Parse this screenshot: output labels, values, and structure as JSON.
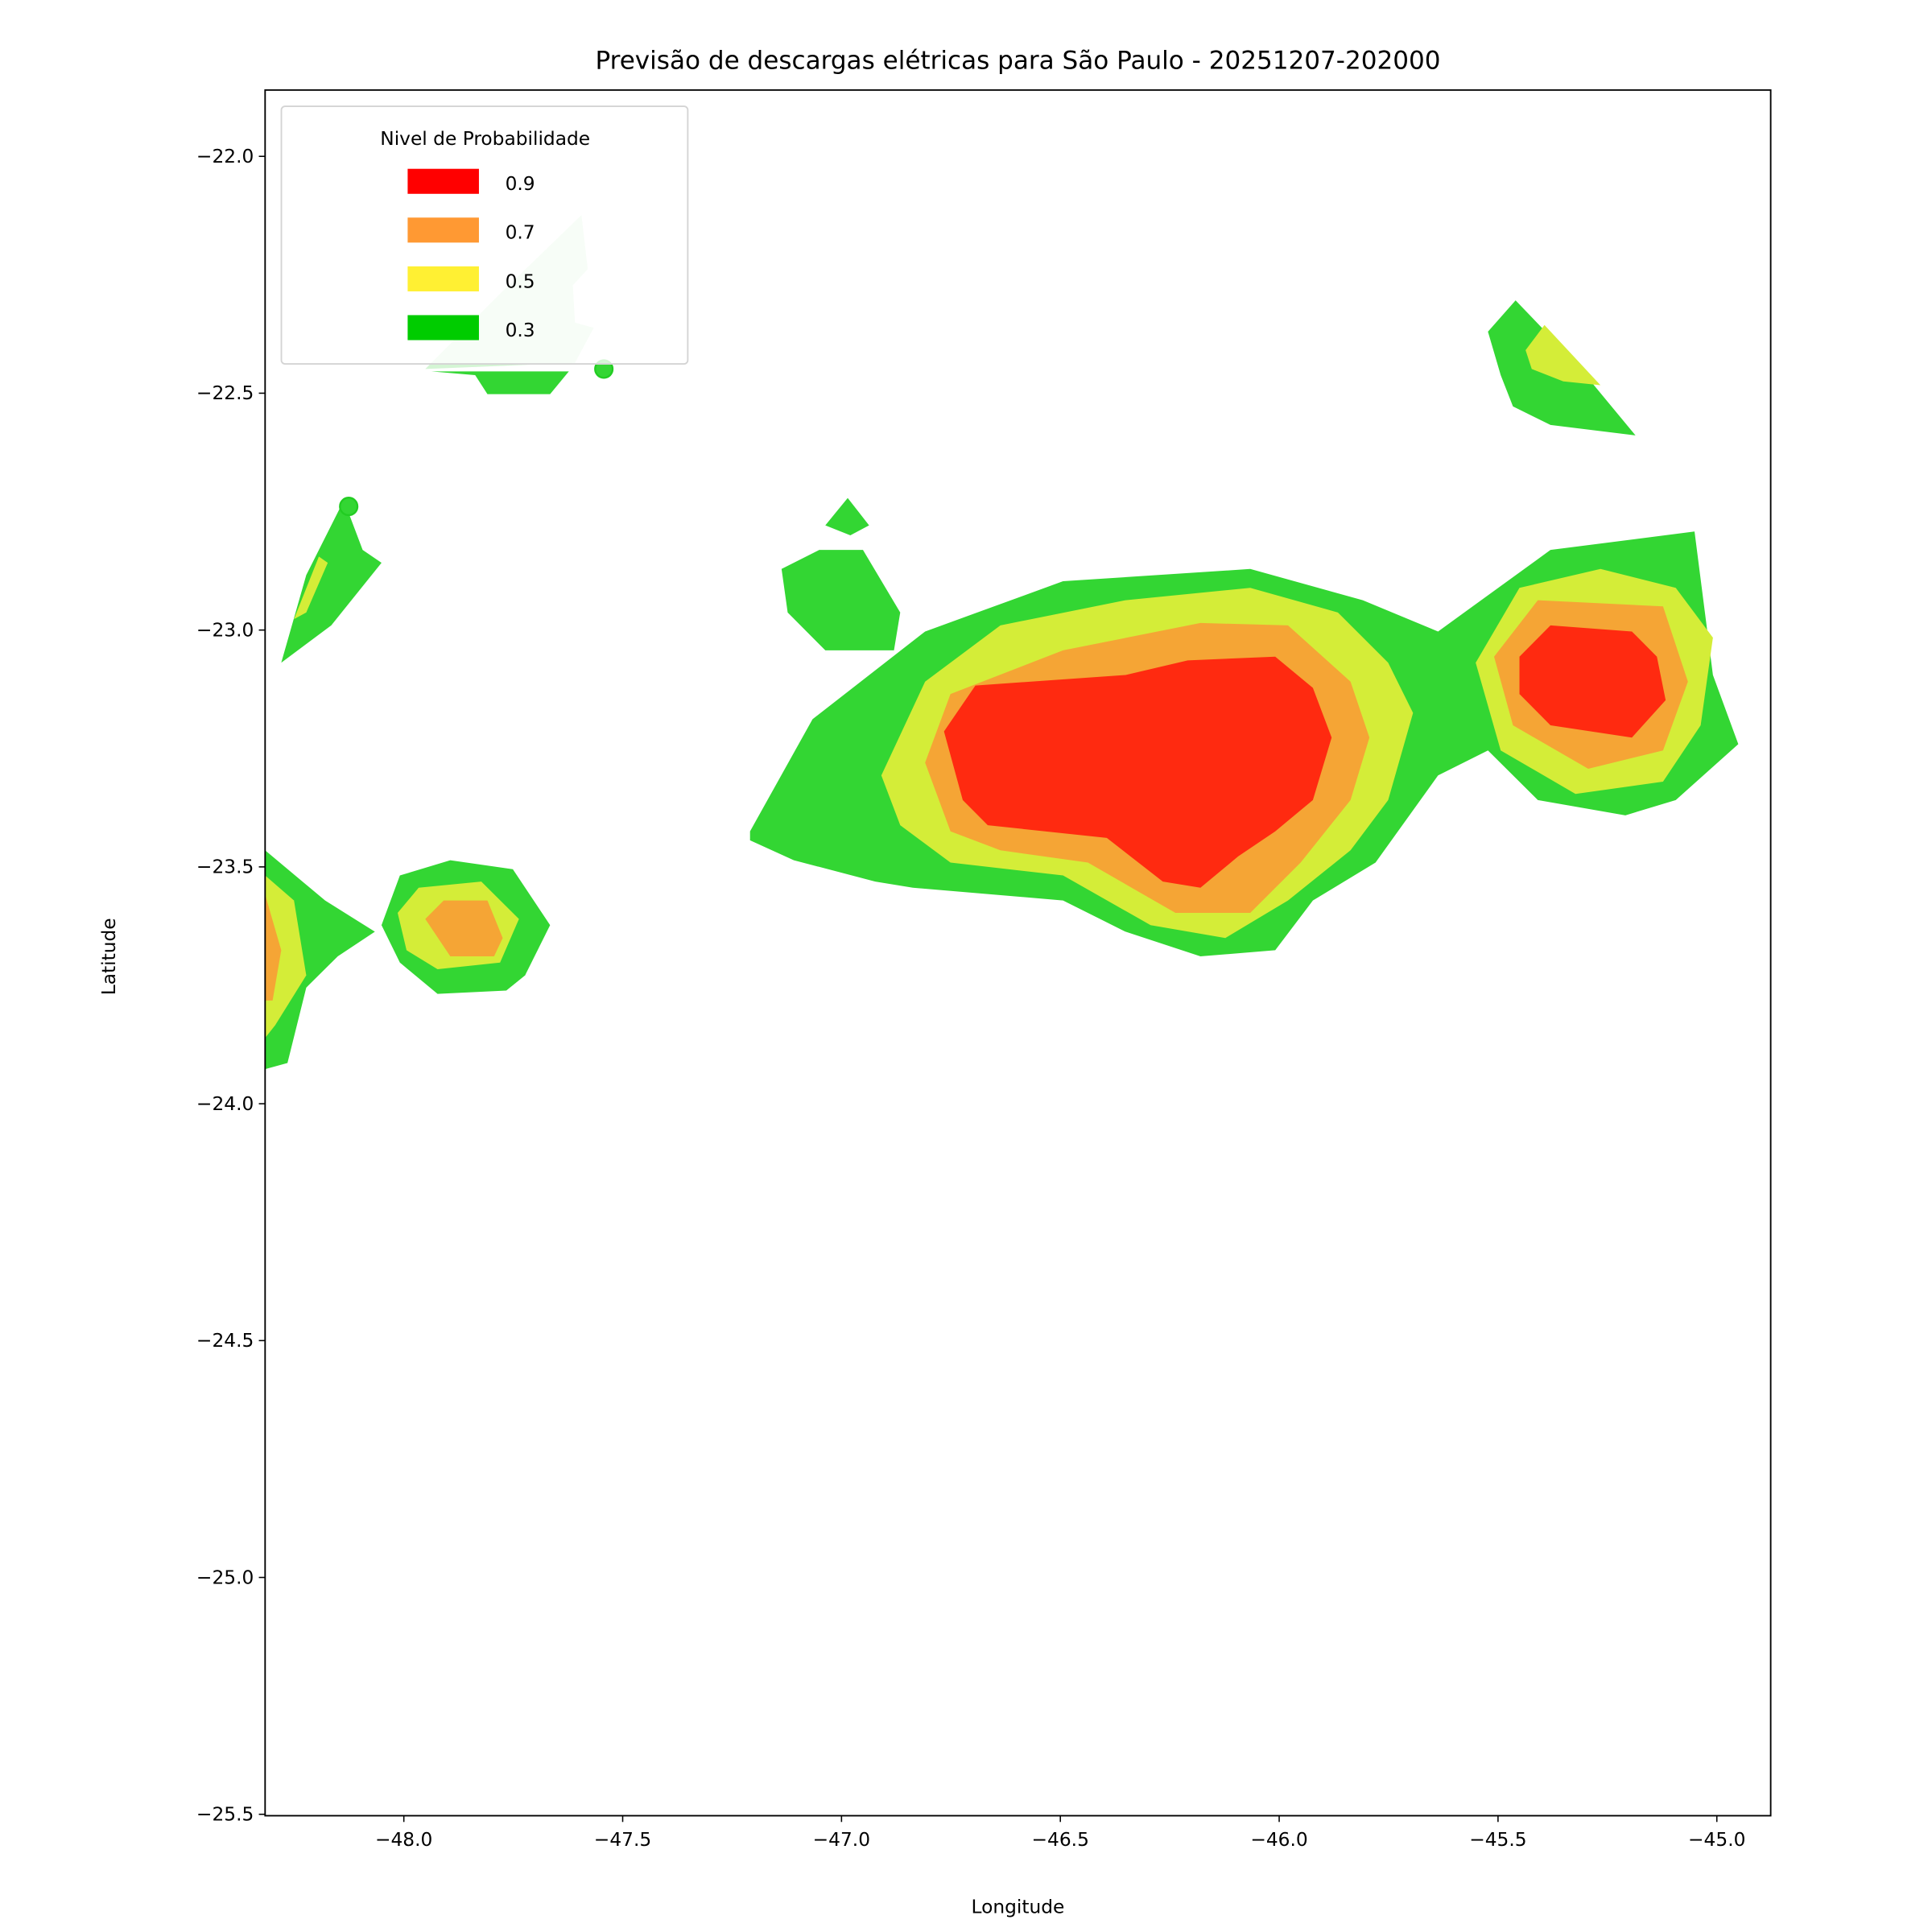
{
  "chart_data": {
    "type": "contour",
    "title": "Previsão de descargas elétricas para São Paulo - 20251207-202000",
    "xlabel": "Longitude",
    "ylabel": "Latitude",
    "xlim": [
      -48.317,
      -44.877
    ],
    "ylim": [
      -25.503,
      -21.86
    ],
    "xticks": [
      -48.0,
      -47.5,
      -47.0,
      -46.5,
      -46.0,
      -45.5,
      -45.0
    ],
    "yticks": [
      -22.0,
      -22.5,
      -23.0,
      -23.5,
      -24.0,
      -24.5,
      -25.0,
      -25.5
    ],
    "grid": false,
    "legend": {
      "title": "Nivel de Probabilidade",
      "placement": "top-left",
      "entries": [
        {
          "label": "0.9",
          "color": "#ff0000"
        },
        {
          "label": "0.7",
          "color": "#ff9933"
        },
        {
          "label": "0.5",
          "color": "#fff033"
        },
        {
          "label": "0.3",
          "color": "#00cc00"
        }
      ]
    },
    "fill_colors": {
      "low": "#d4f5d4",
      "0.3": "#33d633",
      "0.5": "#d4ed38",
      "0.7": "#f5a535",
      "0.9": "#ff2a10"
    },
    "regions": [
      {
        "level": "low",
        "points": [
          [
            -47.951,
            -22.449
          ],
          [
            -47.78,
            -22.29
          ],
          [
            -47.594,
            -22.124
          ],
          [
            -47.58,
            -22.238
          ],
          [
            -47.614,
            -22.272
          ],
          [
            -47.609,
            -22.351
          ],
          [
            -47.566,
            -22.362
          ],
          [
            -47.609,
            -22.436
          ]
        ]
      },
      {
        "level": "0.3",
        "points": [
          [
            -47.937,
            -22.454
          ],
          [
            -47.623,
            -22.454
          ],
          [
            -47.666,
            -22.502
          ],
          [
            -47.809,
            -22.502
          ],
          [
            -47.837,
            -22.462
          ]
        ]
      },
      {
        "level": "0.3",
        "points": [
          [
            -47.209,
            -23.425
          ],
          [
            -47.066,
            -23.188
          ],
          [
            -46.809,
            -23.003
          ],
          [
            -46.494,
            -22.897
          ],
          [
            -46.066,
            -22.871
          ],
          [
            -45.809,
            -22.937
          ],
          [
            -45.637,
            -23.003
          ],
          [
            -45.38,
            -22.831
          ],
          [
            -45.051,
            -22.792
          ],
          [
            -45.009,
            -23.095
          ],
          [
            -44.951,
            -23.241
          ],
          [
            -45.094,
            -23.359
          ],
          [
            -45.209,
            -23.391
          ],
          [
            -45.409,
            -23.359
          ],
          [
            -45.523,
            -23.254
          ],
          [
            -45.637,
            -23.307
          ],
          [
            -45.78,
            -23.491
          ],
          [
            -45.923,
            -23.571
          ],
          [
            -46.009,
            -23.676
          ],
          [
            -46.18,
            -23.689
          ],
          [
            -46.351,
            -23.637
          ],
          [
            -46.494,
            -23.571
          ],
          [
            -46.837,
            -23.544
          ],
          [
            -46.923,
            -23.531
          ],
          [
            -47.109,
            -23.486
          ],
          [
            -47.209,
            -23.444
          ]
        ]
      },
      {
        "level": "0.3",
        "points": [
          [
            -47.137,
            -22.871
          ],
          [
            -47.051,
            -22.831
          ],
          [
            -46.951,
            -22.831
          ],
          [
            -46.866,
            -22.963
          ],
          [
            -46.88,
            -23.043
          ],
          [
            -47.037,
            -23.043
          ],
          [
            -47.123,
            -22.963
          ]
        ]
      },
      {
        "level": "0.3",
        "points": [
          [
            -47.037,
            -22.779
          ],
          [
            -46.986,
            -22.721
          ],
          [
            -46.937,
            -22.779
          ],
          [
            -46.98,
            -22.8
          ]
        ]
      },
      {
        "level": "0.3",
        "points": [
          [
            -45.523,
            -22.37
          ],
          [
            -45.46,
            -22.304
          ],
          [
            -45.323,
            -22.436
          ],
          [
            -45.186,
            -22.589
          ],
          [
            -45.38,
            -22.567
          ],
          [
            -45.466,
            -22.528
          ],
          [
            -45.494,
            -22.462
          ]
        ]
      },
      {
        "level": "0.3",
        "points": [
          [
            -48.051,
            -23.623
          ],
          [
            -48.009,
            -23.518
          ],
          [
            -47.894,
            -23.486
          ],
          [
            -47.751,
            -23.505
          ],
          [
            -47.666,
            -23.623
          ],
          [
            -47.723,
            -23.729
          ],
          [
            -47.766,
            -23.761
          ],
          [
            -47.923,
            -23.768
          ],
          [
            -48.009,
            -23.702
          ]
        ]
      },
      {
        "level": "0.3",
        "points": [
          [
            -48.317,
            -23.465
          ],
          [
            -48.18,
            -23.571
          ],
          [
            -48.066,
            -23.637
          ],
          [
            -48.151,
            -23.689
          ],
          [
            -48.223,
            -23.755
          ],
          [
            -48.266,
            -23.914
          ],
          [
            -48.317,
            -23.927
          ]
        ]
      },
      {
        "level": "0.3",
        "points": [
          [
            -48.28,
            -23.069
          ],
          [
            -48.223,
            -22.884
          ],
          [
            -48.137,
            -22.726
          ],
          [
            -48.094,
            -22.831
          ],
          [
            -48.051,
            -22.858
          ],
          [
            -48.166,
            -22.99
          ]
        ]
      },
      {
        "level": "0.5",
        "points": [
          [
            -46.909,
            -23.307
          ],
          [
            -46.809,
            -23.109
          ],
          [
            -46.637,
            -22.99
          ],
          [
            -46.351,
            -22.937
          ],
          [
            -46.066,
            -22.911
          ],
          [
            -45.866,
            -22.963
          ],
          [
            -45.751,
            -23.069
          ],
          [
            -45.694,
            -23.175
          ],
          [
            -45.751,
            -23.359
          ],
          [
            -45.837,
            -23.465
          ],
          [
            -45.98,
            -23.571
          ],
          [
            -46.123,
            -23.65
          ],
          [
            -46.294,
            -23.623
          ],
          [
            -46.494,
            -23.518
          ],
          [
            -46.751,
            -23.491
          ],
          [
            -46.866,
            -23.412
          ]
        ]
      },
      {
        "level": "0.5",
        "points": [
          [
            -45.551,
            -23.069
          ],
          [
            -45.451,
            -22.911
          ],
          [
            -45.266,
            -22.871
          ],
          [
            -45.094,
            -22.911
          ],
          [
            -45.009,
            -23.016
          ],
          [
            -45.037,
            -23.201
          ],
          [
            -45.123,
            -23.32
          ],
          [
            -45.323,
            -23.346
          ],
          [
            -45.494,
            -23.254
          ]
        ]
      },
      {
        "level": "0.5",
        "points": [
          [
            -45.437,
            -22.409
          ],
          [
            -45.394,
            -22.356
          ],
          [
            -45.266,
            -22.483
          ],
          [
            -45.351,
            -22.475
          ],
          [
            -45.423,
            -22.449
          ]
        ]
      },
      {
        "level": "0.5",
        "points": [
          [
            -48.014,
            -23.597
          ],
          [
            -47.966,
            -23.544
          ],
          [
            -47.823,
            -23.531
          ],
          [
            -47.737,
            -23.61
          ],
          [
            -47.78,
            -23.702
          ],
          [
            -47.923,
            -23.716
          ],
          [
            -47.994,
            -23.676
          ]
        ]
      },
      {
        "level": "0.5",
        "points": [
          [
            -48.317,
            -23.518
          ],
          [
            -48.251,
            -23.571
          ],
          [
            -48.223,
            -23.729
          ],
          [
            -48.294,
            -23.834
          ],
          [
            -48.317,
            -23.861
          ]
        ]
      },
      {
        "level": "0.5",
        "points": [
          [
            -48.251,
            -22.977
          ],
          [
            -48.194,
            -22.845
          ],
          [
            -48.174,
            -22.858
          ],
          [
            -48.223,
            -22.963
          ]
        ]
      },
      {
        "level": "0.7",
        "points": [
          [
            -46.809,
            -23.28
          ],
          [
            -46.751,
            -23.135
          ],
          [
            -46.494,
            -23.043
          ],
          [
            -46.18,
            -22.985
          ],
          [
            -45.98,
            -22.99
          ],
          [
            -45.837,
            -23.109
          ],
          [
            -45.794,
            -23.227
          ],
          [
            -45.837,
            -23.359
          ],
          [
            -45.951,
            -23.491
          ],
          [
            -46.066,
            -23.597
          ],
          [
            -46.237,
            -23.597
          ],
          [
            -46.437,
            -23.491
          ],
          [
            -46.637,
            -23.465
          ],
          [
            -46.751,
            -23.425
          ]
        ]
      },
      {
        "level": "0.7",
        "points": [
          [
            -45.509,
            -23.056
          ],
          [
            -45.409,
            -22.937
          ],
          [
            -45.123,
            -22.95
          ],
          [
            -45.066,
            -23.109
          ],
          [
            -45.123,
            -23.254
          ],
          [
            -45.294,
            -23.293
          ],
          [
            -45.466,
            -23.201
          ]
        ]
      },
      {
        "level": "0.7",
        "points": [
          [
            -47.951,
            -23.61
          ],
          [
            -47.909,
            -23.571
          ],
          [
            -47.809,
            -23.571
          ],
          [
            -47.774,
            -23.65
          ],
          [
            -47.794,
            -23.689
          ],
          [
            -47.894,
            -23.689
          ]
        ]
      },
      {
        "level": "0.7",
        "points": [
          [
            -48.317,
            -23.558
          ],
          [
            -48.28,
            -23.676
          ],
          [
            -48.3,
            -23.782
          ],
          [
            -48.317,
            -23.782
          ]
        ]
      },
      {
        "level": "0.9",
        "points": [
          [
            -46.766,
            -23.214
          ],
          [
            -46.694,
            -23.117
          ],
          [
            -46.351,
            -23.095
          ],
          [
            -46.209,
            -23.064
          ],
          [
            -46.009,
            -23.056
          ],
          [
            -45.923,
            -23.122
          ],
          [
            -45.88,
            -23.227
          ],
          [
            -45.923,
            -23.359
          ],
          [
            -46.009,
            -23.425
          ],
          [
            -46.094,
            -23.478
          ],
          [
            -46.18,
            -23.544
          ],
          [
            -46.266,
            -23.531
          ],
          [
            -46.394,
            -23.439
          ],
          [
            -46.666,
            -23.412
          ],
          [
            -46.723,
            -23.359
          ]
        ]
      },
      {
        "level": "0.9",
        "points": [
          [
            -45.451,
            -23.056
          ],
          [
            -45.38,
            -22.99
          ],
          [
            -45.194,
            -23.003
          ],
          [
            -45.137,
            -23.056
          ],
          [
            -45.117,
            -23.148
          ],
          [
            -45.194,
            -23.227
          ],
          [
            -45.38,
            -23.201
          ],
          [
            -45.451,
            -23.135
          ]
        ]
      }
    ],
    "markers": [
      {
        "lon": -47.543,
        "lat": -22.449,
        "color": "#33d633"
      },
      {
        "lon": -48.126,
        "lat": -22.739,
        "color": "#33d633"
      }
    ]
  }
}
